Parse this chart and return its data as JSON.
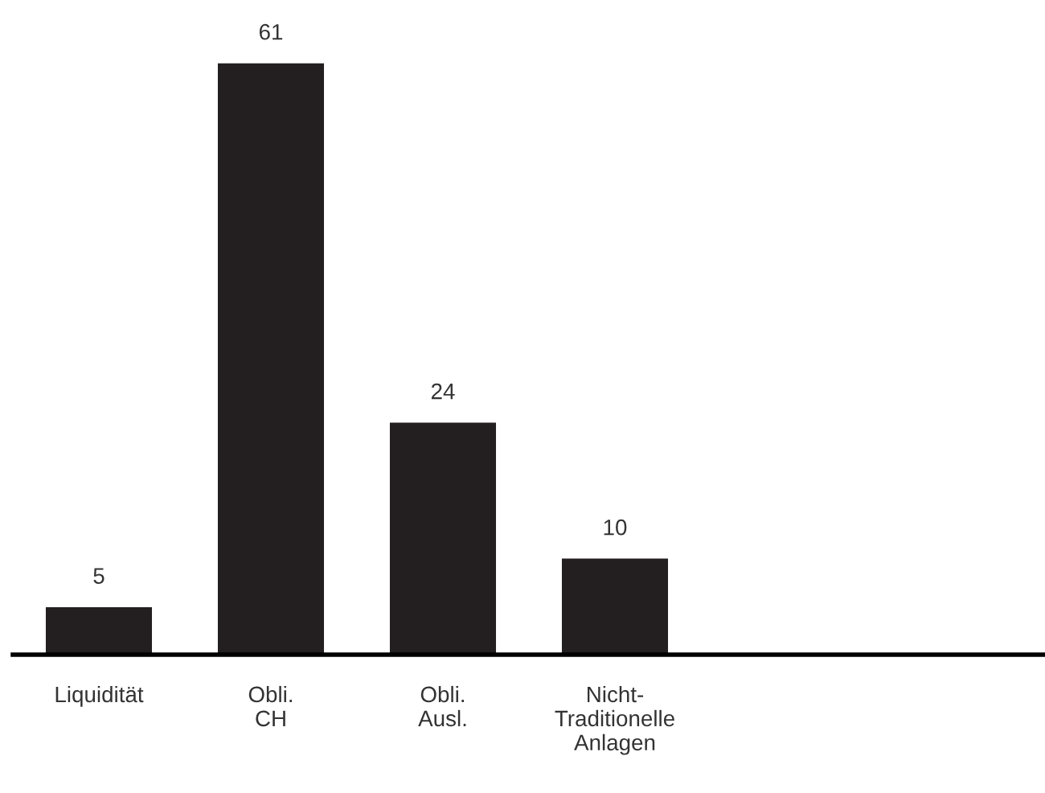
{
  "chart_data": {
    "type": "bar",
    "categories": [
      "Liquidität",
      "Obli.\nCH",
      "Obli.\nAusl.",
      "Nicht-\nTraditionelle\nAnlagen",
      null,
      null
    ],
    "values": [
      5,
      61,
      24,
      10,
      null,
      null
    ],
    "color": "#231f20",
    "data_labels": true,
    "grid": false,
    "legend": false
  }
}
